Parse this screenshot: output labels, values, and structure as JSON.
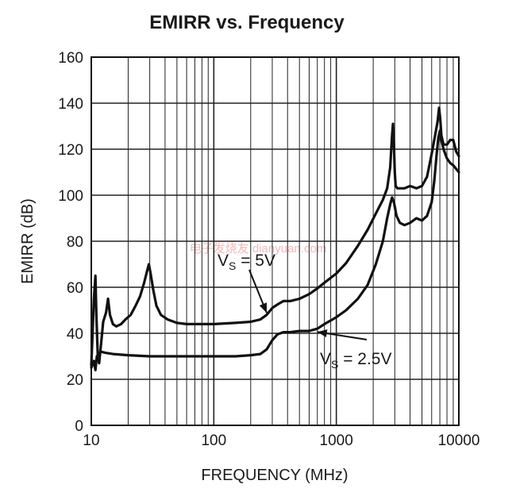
{
  "chart_data": {
    "type": "line",
    "title": "EMIRR vs. Frequency",
    "xlabel": "FREQUENCY (MHz)",
    "ylabel": "EMIRR (dB)",
    "xscale": "log",
    "xlim": [
      10,
      10000
    ],
    "ylim": [
      0,
      160
    ],
    "grid": true,
    "x_ticks": [
      "10",
      "100",
      "1000",
      "10000"
    ],
    "y_ticks": [
      "0",
      "20",
      "40",
      "60",
      "80",
      "100",
      "120",
      "140",
      "160"
    ],
    "annotations": [
      {
        "prefix": "V",
        "subscript": "S",
        "suffix": " = 5V",
        "target": "VS = 5V"
      },
      {
        "prefix": "V",
        "subscript": "S",
        "suffix": " = 2.5V",
        "target": "VS = 2.5V"
      }
    ],
    "watermark": "电子发烧友 dianyuan.com",
    "series": [
      {
        "name": "VS = 5V",
        "x": [
          10,
          10.5,
          10.8,
          11,
          11.3,
          11.6,
          12,
          12.5,
          13.2,
          13.7,
          14.2,
          15,
          16,
          17.5,
          19,
          21,
          23,
          25,
          27,
          28.5,
          29.5,
          30.5,
          32,
          34,
          37,
          42,
          50,
          60,
          80,
          100,
          150,
          200,
          240,
          270,
          300,
          330,
          370,
          420,
          500,
          600,
          700,
          800,
          1000,
          1200,
          1500,
          1800,
          2100,
          2400,
          2600,
          2750,
          2850,
          2900,
          2950,
          3000,
          3050,
          3150,
          3300,
          3600,
          4000,
          4500,
          5000,
          5500,
          6000,
          6400,
          6700,
          6900,
          7050,
          7200,
          7500,
          8000,
          8500,
          9000,
          9500,
          10000
        ],
        "values": [
          26,
          55,
          65,
          48,
          30,
          27,
          35,
          45,
          49,
          55,
          48,
          44,
          43,
          44,
          46,
          48,
          52,
          56,
          62,
          67,
          70,
          66,
          59,
          52,
          48,
          46,
          44.5,
          44,
          44,
          44,
          44.5,
          45,
          46,
          48,
          51,
          52.5,
          54,
          54,
          55,
          57,
          59.5,
          62,
          66,
          70.5,
          78,
          85,
          92,
          98,
          103,
          112,
          126,
          131,
          122,
          110,
          104,
          103,
          103,
          103,
          104,
          103,
          104,
          108,
          118,
          126,
          132,
          138,
          133,
          126,
          122,
          122,
          124,
          124,
          119,
          117
        ]
      },
      {
        "name": "VS = 2.5V",
        "x": [
          10,
          10.5,
          10.8,
          11.1,
          11.5,
          12,
          13,
          15,
          20,
          30,
          50,
          100,
          150,
          200,
          240,
          270,
          300,
          330,
          370,
          420,
          500,
          600,
          700,
          800,
          1000,
          1200,
          1500,
          1800,
          2100,
          2400,
          2600,
          2750,
          2850,
          2950,
          3100,
          3300,
          3600,
          4000,
          4500,
          5000,
          5500,
          6000,
          6300,
          6600,
          6800,
          7000,
          7200,
          7500,
          8000,
          8500,
          9000,
          10000
        ],
        "values": [
          25,
          28,
          24,
          30,
          31,
          32,
          31.5,
          31,
          30.5,
          30,
          30,
          30,
          30,
          30.5,
          31,
          33,
          37,
          39.5,
          40.5,
          40.5,
          41,
          41,
          42,
          44,
          47,
          50,
          55,
          61,
          70,
          80,
          90,
          96,
          99,
          97,
          91,
          88,
          87,
          88,
          90,
          89,
          91,
          97,
          106,
          118,
          125,
          128,
          124,
          120,
          116,
          114,
          113,
          110
        ]
      }
    ]
  }
}
